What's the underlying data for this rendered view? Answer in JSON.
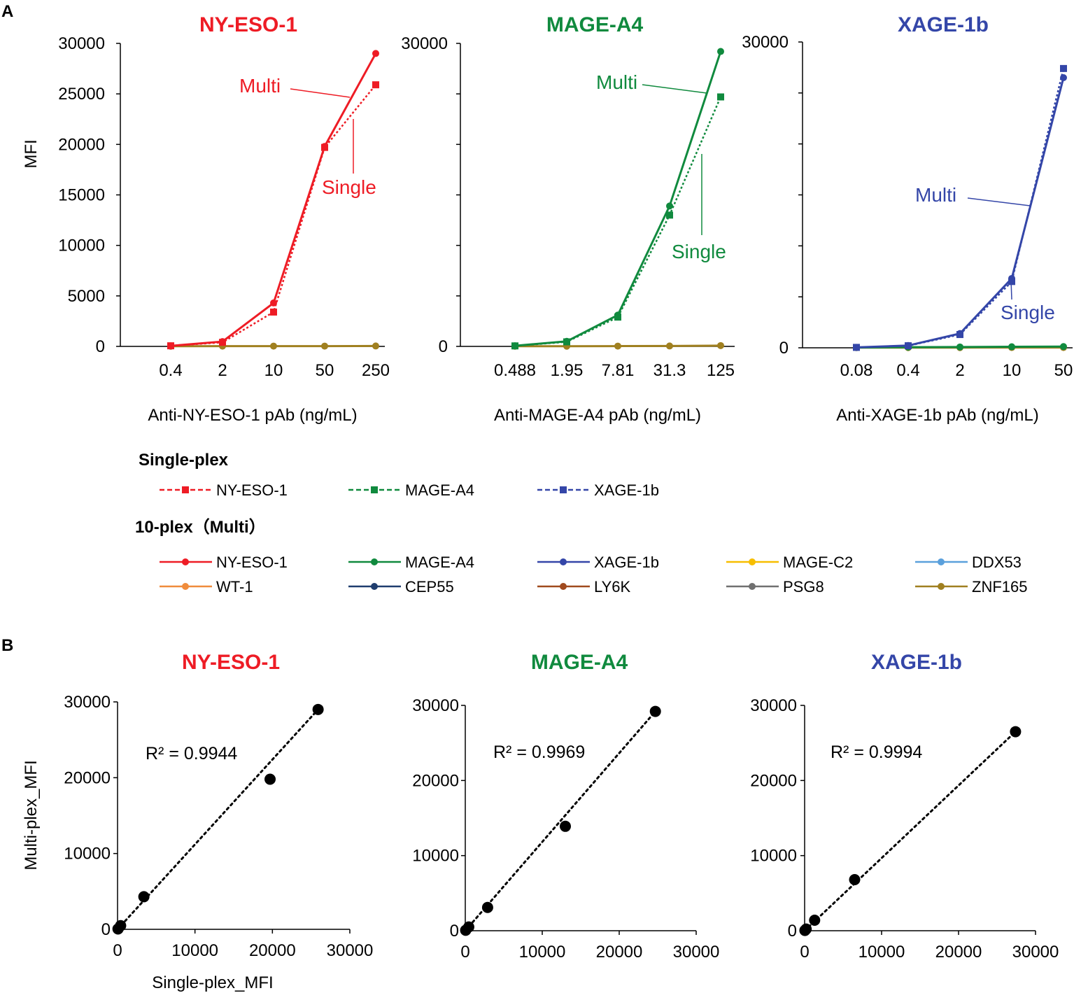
{
  "panels": {
    "a": "A",
    "b": "B"
  },
  "colors": {
    "NY-ESO-1": "#ee1c25",
    "MAGE-A4": "#108a3e",
    "XAGE-1b": "#3446a8",
    "MAGE-C2": "#f7be00",
    "DDX53": "#5aa0dc",
    "WT-1": "#f08c3c",
    "CEP55": "#1f3d6e",
    "LY6K": "#a04a1e",
    "PSG8": "#707070",
    "ZNF165": "#a08020"
  },
  "chart_data": [
    {
      "id": "a1",
      "type": "line",
      "title": "NY-ESO-1",
      "color_key": "NY-ESO-1",
      "categories": [
        "0.4",
        "2",
        "10",
        "50",
        "250"
      ],
      "xlabel": "Anti-NY-ESO-1 pAb  (ng/mL)",
      "ylabel": "MFI",
      "ylim": [
        0,
        30000
      ],
      "yticks": [
        "0",
        "5000",
        "10000",
        "15000",
        "20000",
        "25000",
        "30000"
      ],
      "annotations": {
        "multi": "Multi",
        "single": "Single"
      },
      "series": [
        {
          "name": "Single NY-ESO-1",
          "style": "dotted",
          "marker": "square",
          "color_key": "NY-ESO-1",
          "values": [
            60,
            400,
            3400,
            19700,
            25900
          ]
        },
        {
          "name": "Multi NY-ESO-1",
          "style": "solid",
          "marker": "circle",
          "color_key": "NY-ESO-1",
          "values": [
            50,
            480,
            4300,
            19800,
            29000
          ]
        },
        {
          "name": "Other markers (Multi)",
          "style": "solid",
          "marker": "circle",
          "color_key": "ZNF165",
          "values": [
            20,
            30,
            30,
            30,
            40
          ]
        }
      ]
    },
    {
      "id": "a2",
      "type": "line",
      "title": "MAGE-A4",
      "color_key": "MAGE-A4",
      "categories": [
        "0.488",
        "1.95",
        "7.81",
        "31.3",
        "125"
      ],
      "xlabel": "Anti-MAGE-A4 pAb  (ng/mL)",
      "ylabel": "",
      "ylim": [
        0,
        30000
      ],
      "yticks": [
        "0",
        "",
        "",
        "",
        "",
        "",
        "30000"
      ],
      "annotations": {
        "multi": "Multi",
        "single": "Single"
      },
      "series": [
        {
          "name": "Single MAGE-A4",
          "style": "dotted",
          "marker": "square",
          "color_key": "MAGE-A4",
          "values": [
            50,
            450,
            2900,
            13000,
            24700
          ]
        },
        {
          "name": "Multi MAGE-A4",
          "style": "solid",
          "marker": "circle",
          "color_key": "MAGE-A4",
          "values": [
            60,
            500,
            3100,
            13900,
            29200
          ]
        },
        {
          "name": "Other markers (Multi)",
          "style": "solid",
          "marker": "circle",
          "color_key": "ZNF165",
          "values": [
            20,
            20,
            30,
            40,
            80
          ]
        }
      ]
    },
    {
      "id": "a3",
      "type": "line",
      "title": "XAGE-1b",
      "color_key": "XAGE-1b",
      "categories": [
        "0.08",
        "0.4",
        "2",
        "10",
        "50"
      ],
      "xlabel": "Anti-XAGE-1b pAb  (ng/mL)",
      "ylabel": "",
      "ylim": [
        0,
        30000
      ],
      "yticks": [
        "0",
        "",
        "",
        "",
        "",
        "",
        "30000"
      ],
      "annotations": {
        "multi": "Multi",
        "single": "Single"
      },
      "series": [
        {
          "name": "Single XAGE-1b",
          "style": "dotted",
          "marker": "square",
          "color_key": "XAGE-1b",
          "values": [
            40,
            200,
            1300,
            6500,
            27400
          ]
        },
        {
          "name": "Multi XAGE-1b",
          "style": "solid",
          "marker": "circle",
          "color_key": "XAGE-1b",
          "values": [
            40,
            220,
            1400,
            6800,
            26500
          ]
        },
        {
          "name": "MAGE-A4 (Multi)",
          "style": "solid",
          "marker": "circle",
          "color_key": "MAGE-A4",
          "values": [
            30,
            60,
            80,
            100,
            120
          ]
        },
        {
          "name": "Other markers (Multi)",
          "style": "solid",
          "marker": "circle",
          "color_key": "ZNF165",
          "values": [
            20,
            20,
            20,
            30,
            30
          ]
        }
      ]
    },
    {
      "id": "b1",
      "type": "scatter",
      "title": "NY-ESO-1",
      "color_key": "NY-ESO-1",
      "xlabel": "Single-plex_MFI",
      "ylabel": "Multi-plex_MFI",
      "xlim": [
        0,
        30000
      ],
      "ylim": [
        0,
        30000
      ],
      "xticks": [
        "0",
        "10000",
        "20000",
        "30000"
      ],
      "yticks": [
        "0",
        "10000",
        "20000",
        "30000"
      ],
      "r2": "R² = 0.9944",
      "points": [
        [
          60,
          50
        ],
        [
          400,
          480
        ],
        [
          3400,
          4300
        ],
        [
          19700,
          19800
        ],
        [
          25900,
          29000
        ]
      ],
      "trendline": [
        [
          0,
          0
        ],
        [
          25900,
          29000
        ]
      ]
    },
    {
      "id": "b2",
      "type": "scatter",
      "title": "MAGE-A4",
      "color_key": "MAGE-A4",
      "xlabel": "",
      "ylabel": "",
      "xlim": [
        0,
        30000
      ],
      "ylim": [
        0,
        30000
      ],
      "xticks": [
        "0",
        "10000",
        "20000",
        "30000"
      ],
      "yticks": [
        "0",
        "10000",
        "20000",
        "30000"
      ],
      "r2": "R² = 0.9969",
      "points": [
        [
          50,
          60
        ],
        [
          450,
          500
        ],
        [
          2900,
          3100
        ],
        [
          13000,
          13900
        ],
        [
          24700,
          29200
        ]
      ],
      "trendline": [
        [
          0,
          0
        ],
        [
          24700,
          29200
        ]
      ]
    },
    {
      "id": "b3",
      "type": "scatter",
      "title": "XAGE-1b",
      "color_key": "XAGE-1b",
      "xlabel": "",
      "ylabel": "",
      "xlim": [
        0,
        30000
      ],
      "ylim": [
        0,
        30000
      ],
      "xticks": [
        "0",
        "10000",
        "20000",
        "30000"
      ],
      "yticks": [
        "0",
        "10000",
        "20000",
        "30000"
      ],
      "r2": "R² = 0.9994",
      "points": [
        [
          40,
          40
        ],
        [
          200,
          220
        ],
        [
          1300,
          1400
        ],
        [
          6500,
          6800
        ],
        [
          27400,
          26500
        ]
      ],
      "trendline": [
        [
          0,
          0
        ],
        [
          27400,
          26500
        ]
      ]
    }
  ],
  "legend": {
    "single_title": "Single-plex",
    "single": [
      "NY-ESO-1",
      "MAGE-A4",
      "XAGE-1b"
    ],
    "multi_title": "10-plex（Multi）",
    "multi": [
      "NY-ESO-1",
      "MAGE-A4",
      "XAGE-1b",
      "MAGE-C2",
      "DDX53",
      "WT-1",
      "CEP55",
      "LY6K",
      "PSG8",
      "ZNF165"
    ]
  }
}
